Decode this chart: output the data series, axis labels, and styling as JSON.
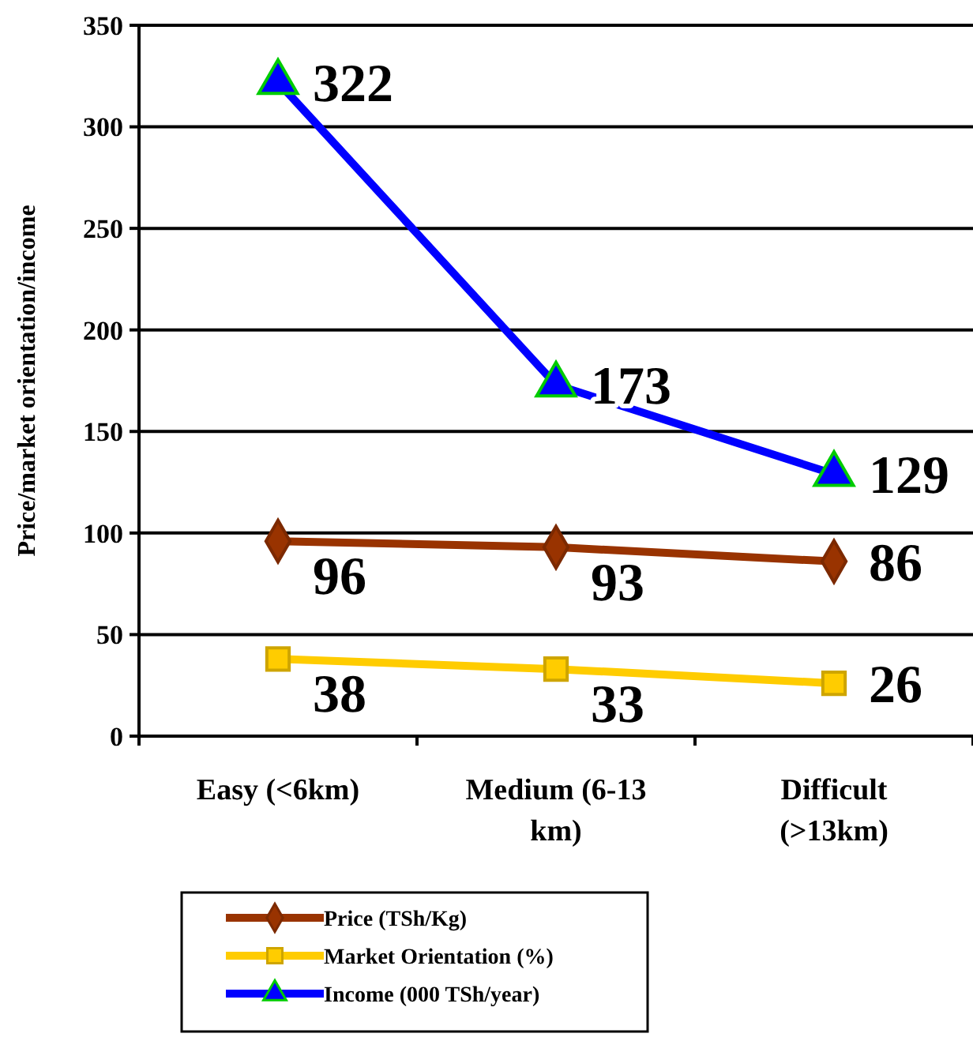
{
  "chart_data": {
    "type": "line",
    "ylabel": "Price/market orientation/income",
    "categories": [
      "Easy (<6km)",
      "Medium (6-13 km)",
      "Difficult (>13km)"
    ],
    "series": [
      {
        "name": "Price (TSh/Kg)",
        "color": "#993300",
        "marker": "diamond",
        "values": [
          96,
          93,
          86
        ]
      },
      {
        "name": "Market Orientation (%)",
        "color": "#ffcc00",
        "marker": "square",
        "values": [
          38,
          33,
          26
        ]
      },
      {
        "name": "Income (000 TSh/year)",
        "color": "#0000ff",
        "marker": "triangle",
        "values": [
          322,
          173,
          129
        ]
      }
    ],
    "ylim": [
      0,
      350
    ],
    "yticks": [
      0,
      50,
      100,
      150,
      200,
      250,
      300,
      350
    ],
    "grid": "y",
    "legend": "bottom",
    "data_labels": true
  }
}
